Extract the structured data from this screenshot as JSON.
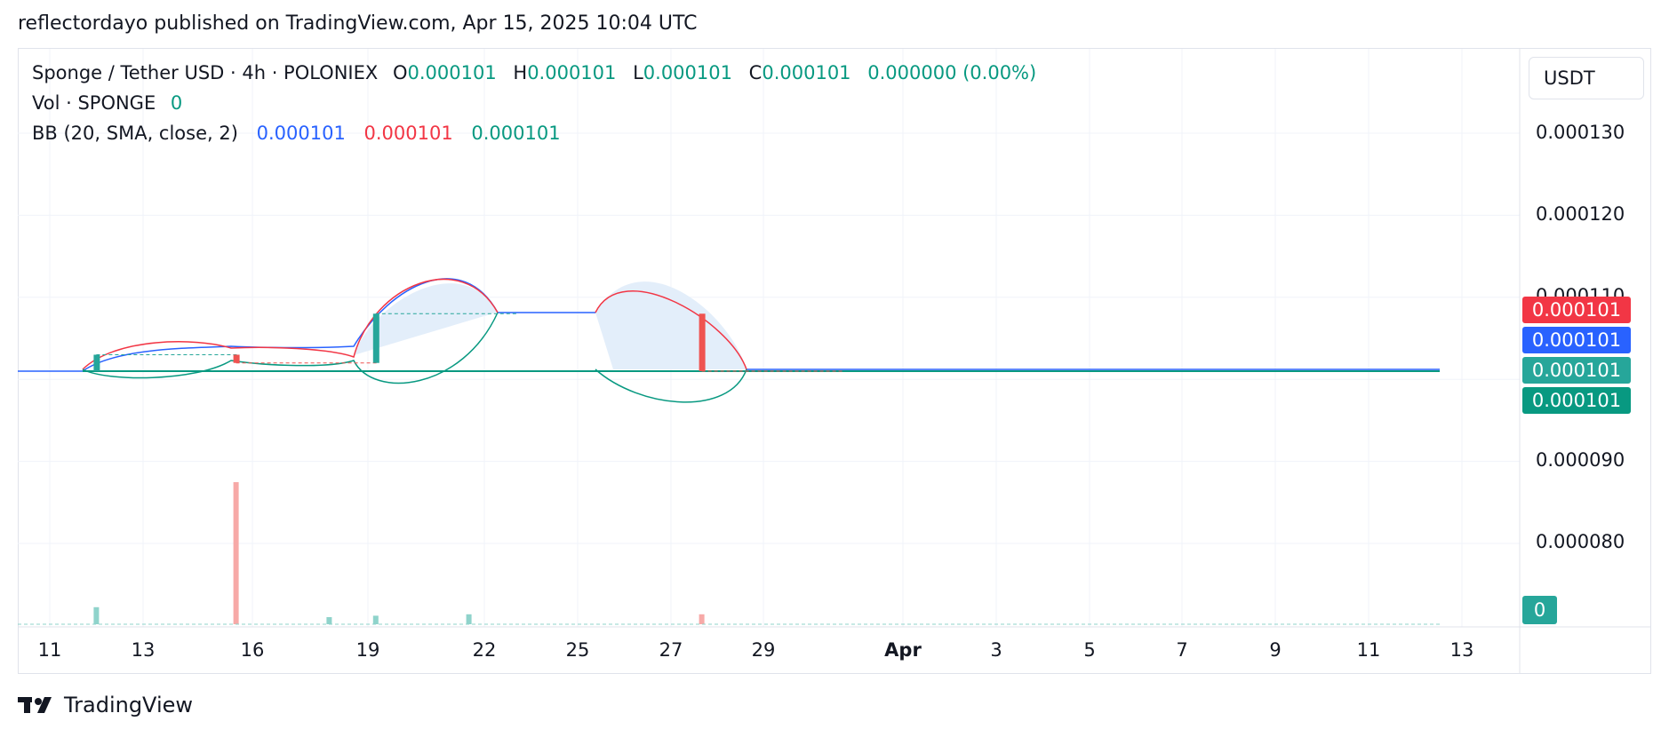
{
  "header": {
    "text": "reflectordayo published on TradingView.com, Apr 15, 2025 10:04 UTC"
  },
  "legend": {
    "symbol": "Sponge / Tether USD · 4h · POLONIEX",
    "o_label": "O",
    "o_value": "0.000101",
    "h_label": "H",
    "h_value": "0.000101",
    "l_label": "L",
    "l_value": "0.000101",
    "c_label": "C",
    "c_value": "0.000101",
    "change": "0.000000 (0.00%)",
    "vol_label": "Vol · SPONGE",
    "vol_value": "0",
    "bb_label": "BB (20, SMA, close, 2)",
    "bb_basis": "0.000101",
    "bb_upper": "0.000101",
    "bb_lower": "0.000101"
  },
  "price_axis": {
    "currency": "USDT",
    "labels": [
      "0.000130",
      "0.000120",
      "0.000110",
      "0.000090",
      "0.000080"
    ]
  },
  "price_tags": [
    {
      "value": "0.000101",
      "color": "#f23645"
    },
    {
      "value": "0.000101",
      "color": "#2962ff"
    },
    {
      "value": "0.000101",
      "color": "#26a69a"
    },
    {
      "value": "0.000101",
      "color": "#089981"
    }
  ],
  "volume_tag": "0",
  "time_axis": [
    "11",
    "13",
    "16",
    "19",
    "22",
    "25",
    "27",
    "29",
    "Apr",
    "3",
    "5",
    "7",
    "9",
    "11",
    "13"
  ],
  "colors": {
    "up": "#26a69a",
    "down": "#ef5350",
    "bb_upper": "#f23645",
    "bb_basis": "#2962ff",
    "bb_lower": "#089981",
    "bb_fill": "#e3eefa"
  },
  "chart_data": {
    "type": "candlestick",
    "symbol": "Sponge / Tether USD",
    "interval": "4h",
    "exchange": "POLONIEX",
    "y_axis_ticks": [
      0.00013,
      0.00012,
      0.00011,
      9e-05,
      8e-05
    ],
    "last_price": 0.000101,
    "candles": [
      {
        "x": "Mar 12",
        "open": 0.000101,
        "close": 0.000103,
        "direction": "up"
      },
      {
        "x": "Mar 15",
        "open": 0.000103,
        "close": 0.000102,
        "direction": "down"
      },
      {
        "x": "Mar 18",
        "open": 0.000102,
        "close": 0.000108,
        "direction": "up"
      },
      {
        "x": "Mar 25",
        "open": 0.000108,
        "close": 0.000101,
        "direction": "down"
      }
    ],
    "volume_bars": [
      {
        "x": "Mar 12",
        "value": 0.12,
        "direction": "up"
      },
      {
        "x": "Mar 15",
        "value": 1.0,
        "direction": "down"
      },
      {
        "x": "Mar 17",
        "value": 0.05,
        "direction": "up"
      },
      {
        "x": "Mar 18",
        "value": 0.06,
        "direction": "up"
      },
      {
        "x": "Mar 20",
        "value": 0.07,
        "direction": "up"
      },
      {
        "x": "Mar 25",
        "value": 0.07,
        "direction": "down"
      }
    ],
    "bollinger": {
      "length": 20,
      "basis": "SMA",
      "source": "close",
      "mult": 2
    }
  }
}
